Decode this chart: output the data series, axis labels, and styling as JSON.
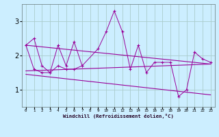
{
  "xlabel": "Windchill (Refroidissement éolien,°C)",
  "x": [
    0,
    1,
    2,
    3,
    4,
    5,
    6,
    7,
    8,
    9,
    10,
    11,
    12,
    13,
    14,
    15,
    16,
    17,
    18,
    19,
    20,
    21,
    22,
    23
  ],
  "line1": [
    2.3,
    2.5,
    1.7,
    1.5,
    2.3,
    1.7,
    2.4,
    1.7,
    2.2,
    2.7,
    3.3,
    2.7,
    1.6,
    2.3,
    1.5,
    1.8,
    1.8,
    1.8,
    0.8,
    1.0,
    2.1,
    1.9,
    1.8
  ],
  "line1_x": [
    0,
    1,
    2,
    3,
    4,
    5,
    6,
    7,
    9,
    10,
    11,
    12,
    13,
    14,
    15,
    16,
    17,
    18,
    19,
    20,
    21,
    22,
    23
  ],
  "line2_x": [
    0,
    1,
    2,
    3,
    4,
    5,
    6,
    7
  ],
  "line2_y": [
    2.3,
    1.6,
    1.5,
    1.5,
    1.7,
    1.6,
    1.6,
    1.7
  ],
  "line3_x": [
    0,
    23
  ],
  "line3_y": [
    2.3,
    1.75
  ],
  "line4_x": [
    0,
    23
  ],
  "line4_y": [
    1.55,
    1.75
  ],
  "line5_x": [
    0,
    23
  ],
  "line5_y": [
    1.45,
    0.85
  ],
  "color": "#990099",
  "bg_color": "#cceeff",
  "grid_color": "#aacccc",
  "ylim": [
    0.5,
    3.5
  ],
  "yticks": [
    1,
    2,
    3
  ],
  "xlim": [
    -0.5,
    23.5
  ]
}
